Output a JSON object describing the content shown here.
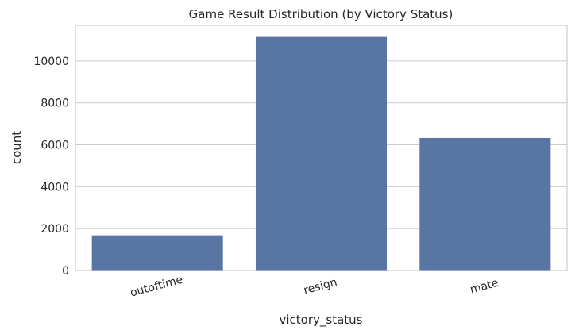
{
  "chart_data": {
    "type": "bar",
    "title": "Game Result Distribution (by Victory Status)",
    "xlabel": "victory_status",
    "ylabel": "count",
    "categories": [
      "outoftime",
      "resign",
      "mate"
    ],
    "values": [
      1680,
      11147,
      6325
    ],
    "ylim": [
      0,
      11700
    ],
    "yticks": [
      0,
      2000,
      4000,
      6000,
      8000,
      10000
    ],
    "ytick_labels": [
      "0",
      "2000",
      "4000",
      "6000",
      "8000",
      "10000"
    ],
    "grid": true,
    "bar_color": "#5875a4",
    "xtick_rotation_deg": 15
  }
}
